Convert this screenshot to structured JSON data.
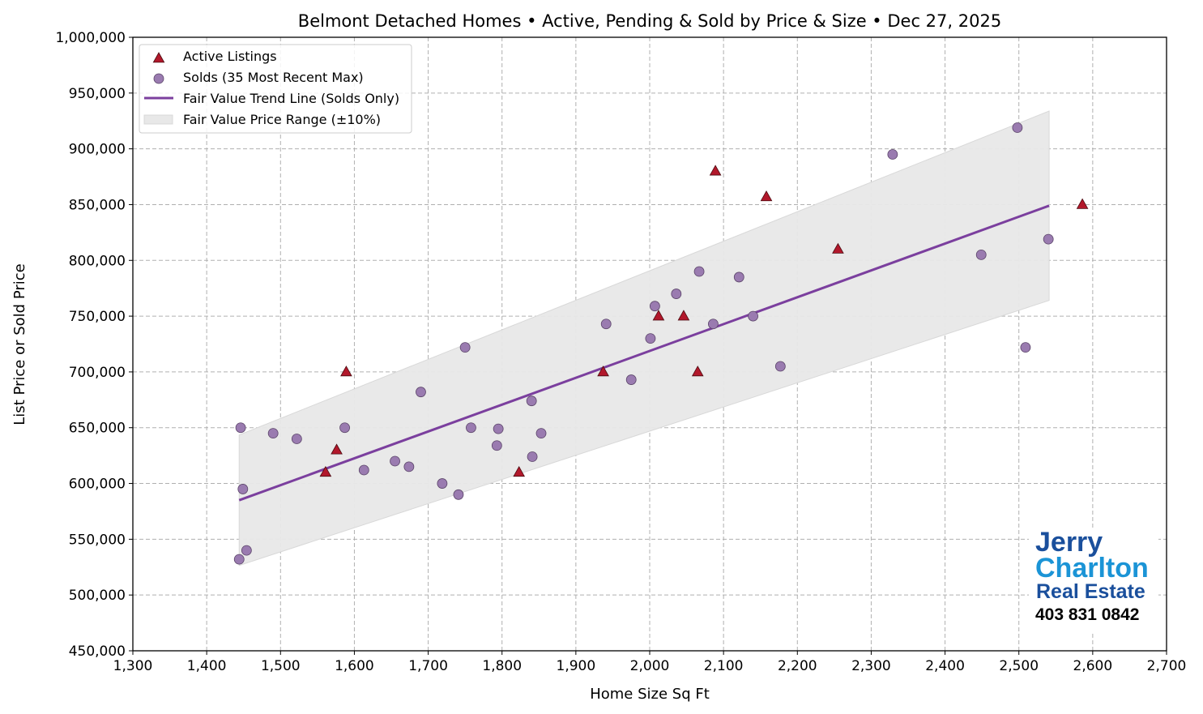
{
  "chart_data": {
    "type": "scatter",
    "title": "Belmont Detached Homes • Active, Pending & Sold by Price & Size • Dec 27, 2025",
    "xlabel": "Home Size Sq Ft",
    "ylabel": "List Price or Sold Price",
    "xlim": [
      1300,
      2700
    ],
    "ylim": [
      450000,
      1000000
    ],
    "xticks": [
      1300,
      1400,
      1500,
      1600,
      1700,
      1800,
      1900,
      2000,
      2100,
      2200,
      2300,
      2400,
      2500,
      2600,
      2700
    ],
    "yticks": [
      450000,
      500000,
      550000,
      600000,
      650000,
      700000,
      750000,
      800000,
      850000,
      900000,
      950000,
      1000000
    ],
    "xtick_labels": [
      "1,300",
      "1,400",
      "1,500",
      "1,600",
      "1,700",
      "1,800",
      "1,900",
      "2,000",
      "2,100",
      "2,200",
      "2,300",
      "2,400",
      "2,500",
      "2,600",
      "2,700"
    ],
    "ytick_labels": [
      "450,000",
      "500,000",
      "550,000",
      "600,000",
      "650,000",
      "700,000",
      "750,000",
      "800,000",
      "850,000",
      "900,000",
      "950,000",
      "1,000,000"
    ],
    "grid": true,
    "legend_position": "top-left",
    "series": [
      {
        "name": "Active Listings",
        "marker": "triangle",
        "color": "#b2182b",
        "points": [
          [
            1561,
            610000
          ],
          [
            1576,
            630000
          ],
          [
            1589,
            700000
          ],
          [
            1823,
            610000
          ],
          [
            1937,
            700000
          ],
          [
            2012,
            750000
          ],
          [
            2046,
            750000
          ],
          [
            2065,
            700000
          ],
          [
            2089,
            880000
          ],
          [
            2158,
            857000
          ],
          [
            2255,
            810000
          ],
          [
            2586,
            850000
          ]
        ]
      },
      {
        "name": "Solds (35 Most Recent Max)",
        "marker": "circle",
        "color": "#9a7bb0",
        "points": [
          [
            1446,
            650000
          ],
          [
            1449,
            595000
          ],
          [
            1444,
            532000
          ],
          [
            1454,
            540000
          ],
          [
            1490,
            645000
          ],
          [
            1522,
            640000
          ],
          [
            1587,
            650000
          ],
          [
            1613,
            612000
          ],
          [
            1655,
            620000
          ],
          [
            1674,
            615000
          ],
          [
            1690,
            682000
          ],
          [
            1719,
            600000
          ],
          [
            1741,
            590000
          ],
          [
            1750,
            722000
          ],
          [
            1758,
            650000
          ],
          [
            1793,
            634000
          ],
          [
            1795,
            649000
          ],
          [
            1840,
            674000
          ],
          [
            1841,
            624000
          ],
          [
            1853,
            645000
          ],
          [
            1941,
            743000
          ],
          [
            1975,
            693000
          ],
          [
            2001,
            730000
          ],
          [
            2007,
            759000
          ],
          [
            2036,
            770000
          ],
          [
            2067,
            790000
          ],
          [
            2086,
            743000
          ],
          [
            2121,
            785000
          ],
          [
            2140,
            750000
          ],
          [
            2177,
            705000
          ],
          [
            2329,
            895000
          ],
          [
            2449,
            805000
          ],
          [
            2498,
            919000
          ],
          [
            2509,
            722000
          ],
          [
            2540,
            819000
          ]
        ]
      },
      {
        "name": "Fair Value Trend Line (Solds Only)",
        "type": "line",
        "color": "#7b3f9e",
        "points": [
          [
            1444,
            585000
          ],
          [
            2541,
            849000
          ]
        ]
      },
      {
        "name": "Fair Value Price Range (±10%)",
        "type": "band",
        "color": "#e8e8e8",
        "band_pct": 10
      }
    ]
  },
  "logo": {
    "line1": "Jerry",
    "line2": "Charlton",
    "line3": "Real Estate",
    "phone": "403 831 0842"
  }
}
